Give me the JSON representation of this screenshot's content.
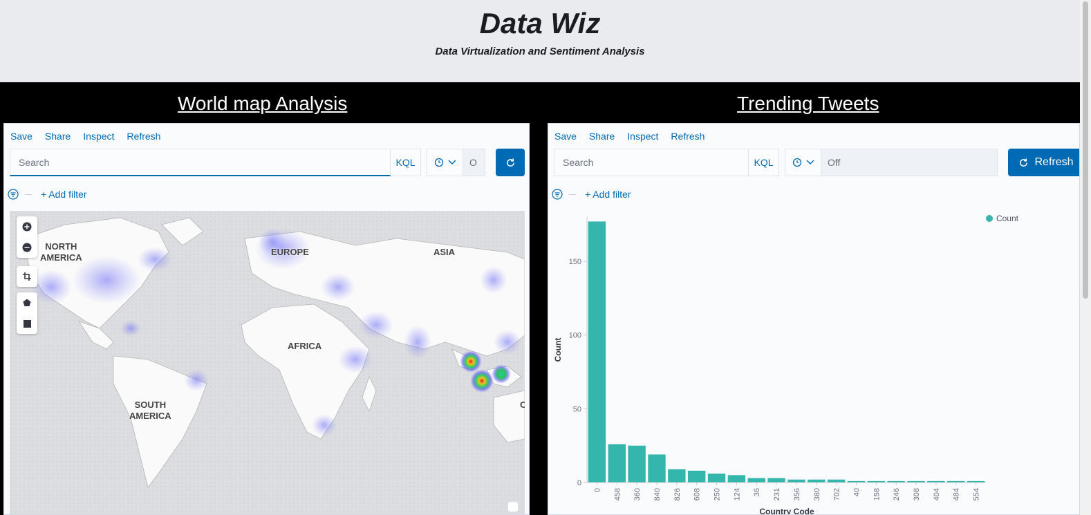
{
  "header": {
    "title": "Data Wiz",
    "subtitle": "Data Virtualization and Sentiment Analysis"
  },
  "sections": {
    "left_title": "World map Analysis",
    "right_title": "Trending Tweets"
  },
  "left_panel": {
    "menu": [
      "Save",
      "Share",
      "Inspect",
      "Refresh"
    ],
    "search_placeholder": "Search",
    "kql": "KQL",
    "refresh_interval": "O",
    "add_filter": "+ Add filter",
    "map_labels": {
      "north_america": "NORTH\nAMERICA",
      "europe": "EUROPE",
      "asia": "ASIA",
      "africa": "AFRICA",
      "south_america": "SOUTH\nAMERICA",
      "oceania": "O"
    }
  },
  "right_panel": {
    "menu": [
      "Save",
      "Share",
      "Inspect",
      "Refresh"
    ],
    "search_placeholder": "Search",
    "kql": "KQL",
    "refresh_interval": "Off",
    "refresh_button": "Refresh",
    "add_filter": "+ Add filter"
  },
  "colors": {
    "accent": "#006bb4",
    "bar": "#35b6ad",
    "header_bg": "#e9ebee"
  },
  "chart_data": {
    "type": "bar",
    "xlabel": "Country Code",
    "ylabel": "Count",
    "legend": [
      "Count"
    ],
    "legend_position": "top-right",
    "ylim": [
      0,
      180
    ],
    "yticks": [
      0,
      50,
      100,
      150
    ],
    "categories": [
      "0",
      "458",
      "360",
      "840",
      "826",
      "608",
      "250",
      "124",
      "36",
      "231",
      "356",
      "380",
      "702",
      "40",
      "158",
      "246",
      "308",
      "404",
      "484",
      "554"
    ],
    "values": [
      177,
      26,
      25,
      19,
      9,
      8,
      6,
      5,
      3,
      3,
      2,
      2,
      2,
      1,
      1,
      1,
      1,
      1,
      1,
      1
    ]
  }
}
